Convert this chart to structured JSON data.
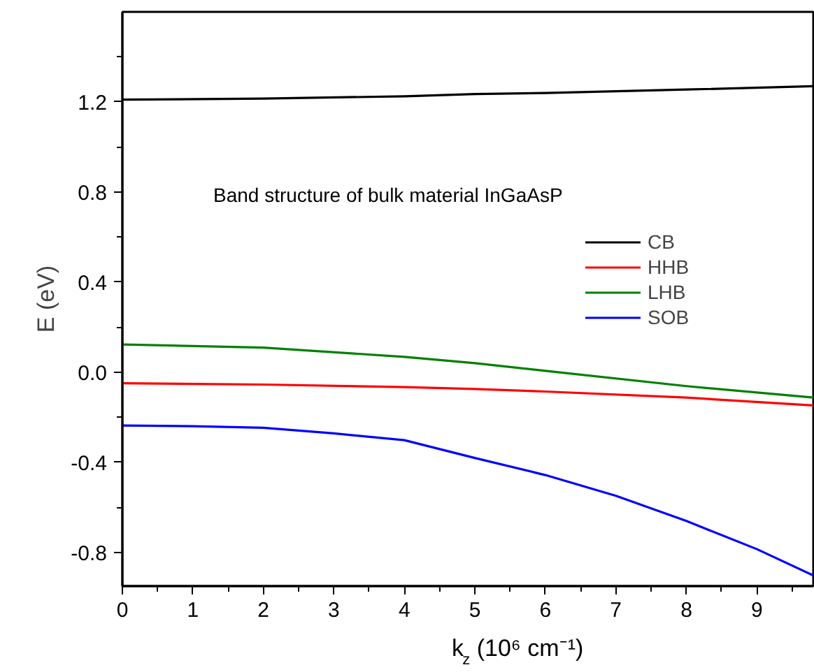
{
  "chart_data": {
    "type": "line",
    "xlabel": "k$_{z}$ (10⁶ cm⁻¹)",
    "ylabel": "E (eV)",
    "annotations": [
      "Band structure of bulk material InGaAsP"
    ],
    "xlim": [
      0,
      9.8
    ],
    "ylim": [
      -0.95,
      1.6
    ],
    "xticks": [
      0,
      {
        "value": 0.5,
        "label": null
      },
      1,
      {
        "value": 1.5,
        "label": null
      },
      2,
      {
        "value": 2.5,
        "label": null
      },
      3,
      {
        "value": 3.5,
        "label": null
      },
      4,
      {
        "value": 4.5,
        "label": null
      },
      5,
      {
        "value": 5.5,
        "label": null
      },
      6,
      {
        "value": 6.5,
        "label": null
      },
      7,
      {
        "value": 7.5,
        "label": null
      },
      8,
      {
        "value": 8.5,
        "label": null
      },
      9,
      {
        "value": 9.5,
        "label": null
      }
    ],
    "yticks": [
      {
        "value": -0.8,
        "label": "-0.8"
      },
      {
        "value": -0.6,
        "label": null
      },
      {
        "value": -0.4,
        "label": "-0.4"
      },
      {
        "value": -0.2,
        "label": null
      },
      {
        "value": 0.0,
        "label": "0.0"
      },
      {
        "value": 0.2,
        "label": null
      },
      {
        "value": 0.4,
        "label": "0.4"
      },
      {
        "value": 0.6,
        "label": null
      },
      {
        "value": 0.8,
        "label": "0.8"
      },
      {
        "value": 1.0,
        "label": null
      },
      {
        "value": 1.2,
        "label": "1.2"
      },
      {
        "value": 1.4,
        "label": null
      }
    ],
    "x": [
      0,
      2,
      4,
      5,
      6,
      8,
      9.8
    ],
    "legend": "top right",
    "grid": false,
    "line_style": "solid",
    "marker": "none",
    "series": [
      {
        "name": "CB",
        "color": "#000000",
        "values": [
          1.21,
          1.215,
          1.225,
          1.235,
          1.24,
          1.255,
          1.27
        ]
      },
      {
        "name": "HHB",
        "color": "#ff0000",
        "values": [
          -0.049,
          -0.055,
          -0.066,
          -0.075,
          -0.086,
          -0.113,
          -0.148
        ]
      },
      {
        "name": "LHB",
        "color": "#008000",
        "values": [
          0.123,
          0.109,
          0.068,
          0.04,
          0.006,
          -0.062,
          -0.113
        ]
      },
      {
        "name": "SOB",
        "color": "#0000ff",
        "x": [
          0,
          1,
          2,
          3,
          4,
          5,
          6,
          7,
          8,
          9,
          9.8
        ],
        "values": [
          -0.237,
          -0.24,
          -0.247,
          -0.272,
          -0.302,
          -0.381,
          -0.457,
          -0.549,
          -0.661,
          -0.786,
          -0.903
        ]
      }
    ]
  }
}
